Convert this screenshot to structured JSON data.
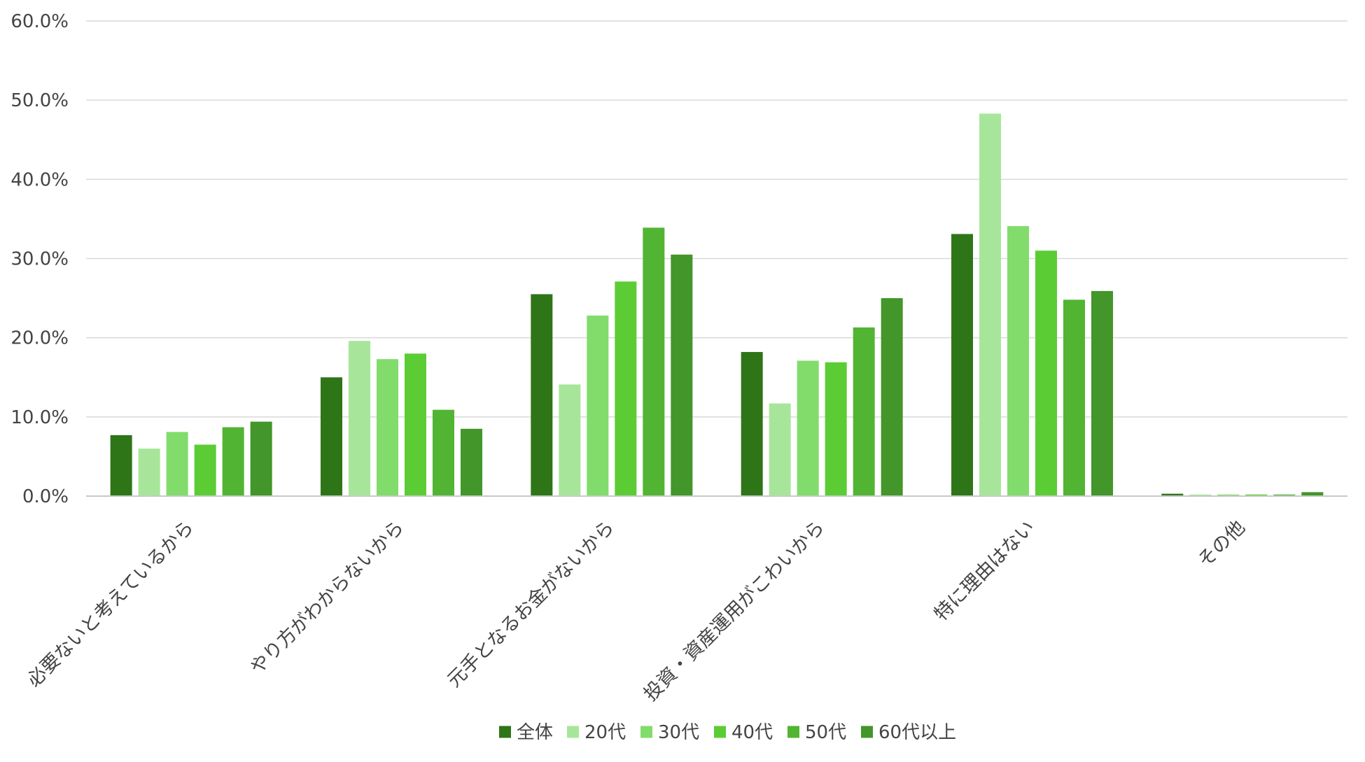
{
  "chart_data": {
    "type": "bar",
    "categories": [
      "必要ないと考えているから",
      "やり方がわからないから",
      "元手となるお金がないから",
      "投資・資産運用がこわいから",
      "特に理由はない",
      "その他"
    ],
    "series": [
      {
        "name": "全体",
        "color": "#2e7518",
        "values": [
          7.7,
          15.0,
          25.5,
          18.2,
          33.1,
          0.3
        ]
      },
      {
        "name": "20代",
        "color": "#a7e69a",
        "values": [
          6.0,
          19.6,
          14.1,
          11.7,
          48.3,
          0.2
        ]
      },
      {
        "name": "30代",
        "color": "#82dc6b",
        "values": [
          8.1,
          17.3,
          22.8,
          17.1,
          34.1,
          0.2
        ]
      },
      {
        "name": "40代",
        "color": "#5ccc35",
        "values": [
          6.5,
          18.0,
          27.1,
          16.9,
          31.0,
          0.2
        ]
      },
      {
        "name": "50代",
        "color": "#52b433",
        "values": [
          8.7,
          10.9,
          33.9,
          21.3,
          24.8,
          0.2
        ]
      },
      {
        "name": "60代以上",
        "color": "#42962a",
        "values": [
          9.4,
          8.5,
          30.5,
          25.0,
          25.9,
          0.5
        ]
      }
    ],
    "y_ticks": [
      "0.0%",
      "10.0%",
      "20.0%",
      "30.0%",
      "40.0%",
      "50.0%",
      "60.0%"
    ],
    "ylim": [
      0,
      60
    ],
    "y_unit": "%",
    "grid": true,
    "legend_position": "bottom-center",
    "title": "",
    "xlabel": "",
    "ylabel": ""
  }
}
